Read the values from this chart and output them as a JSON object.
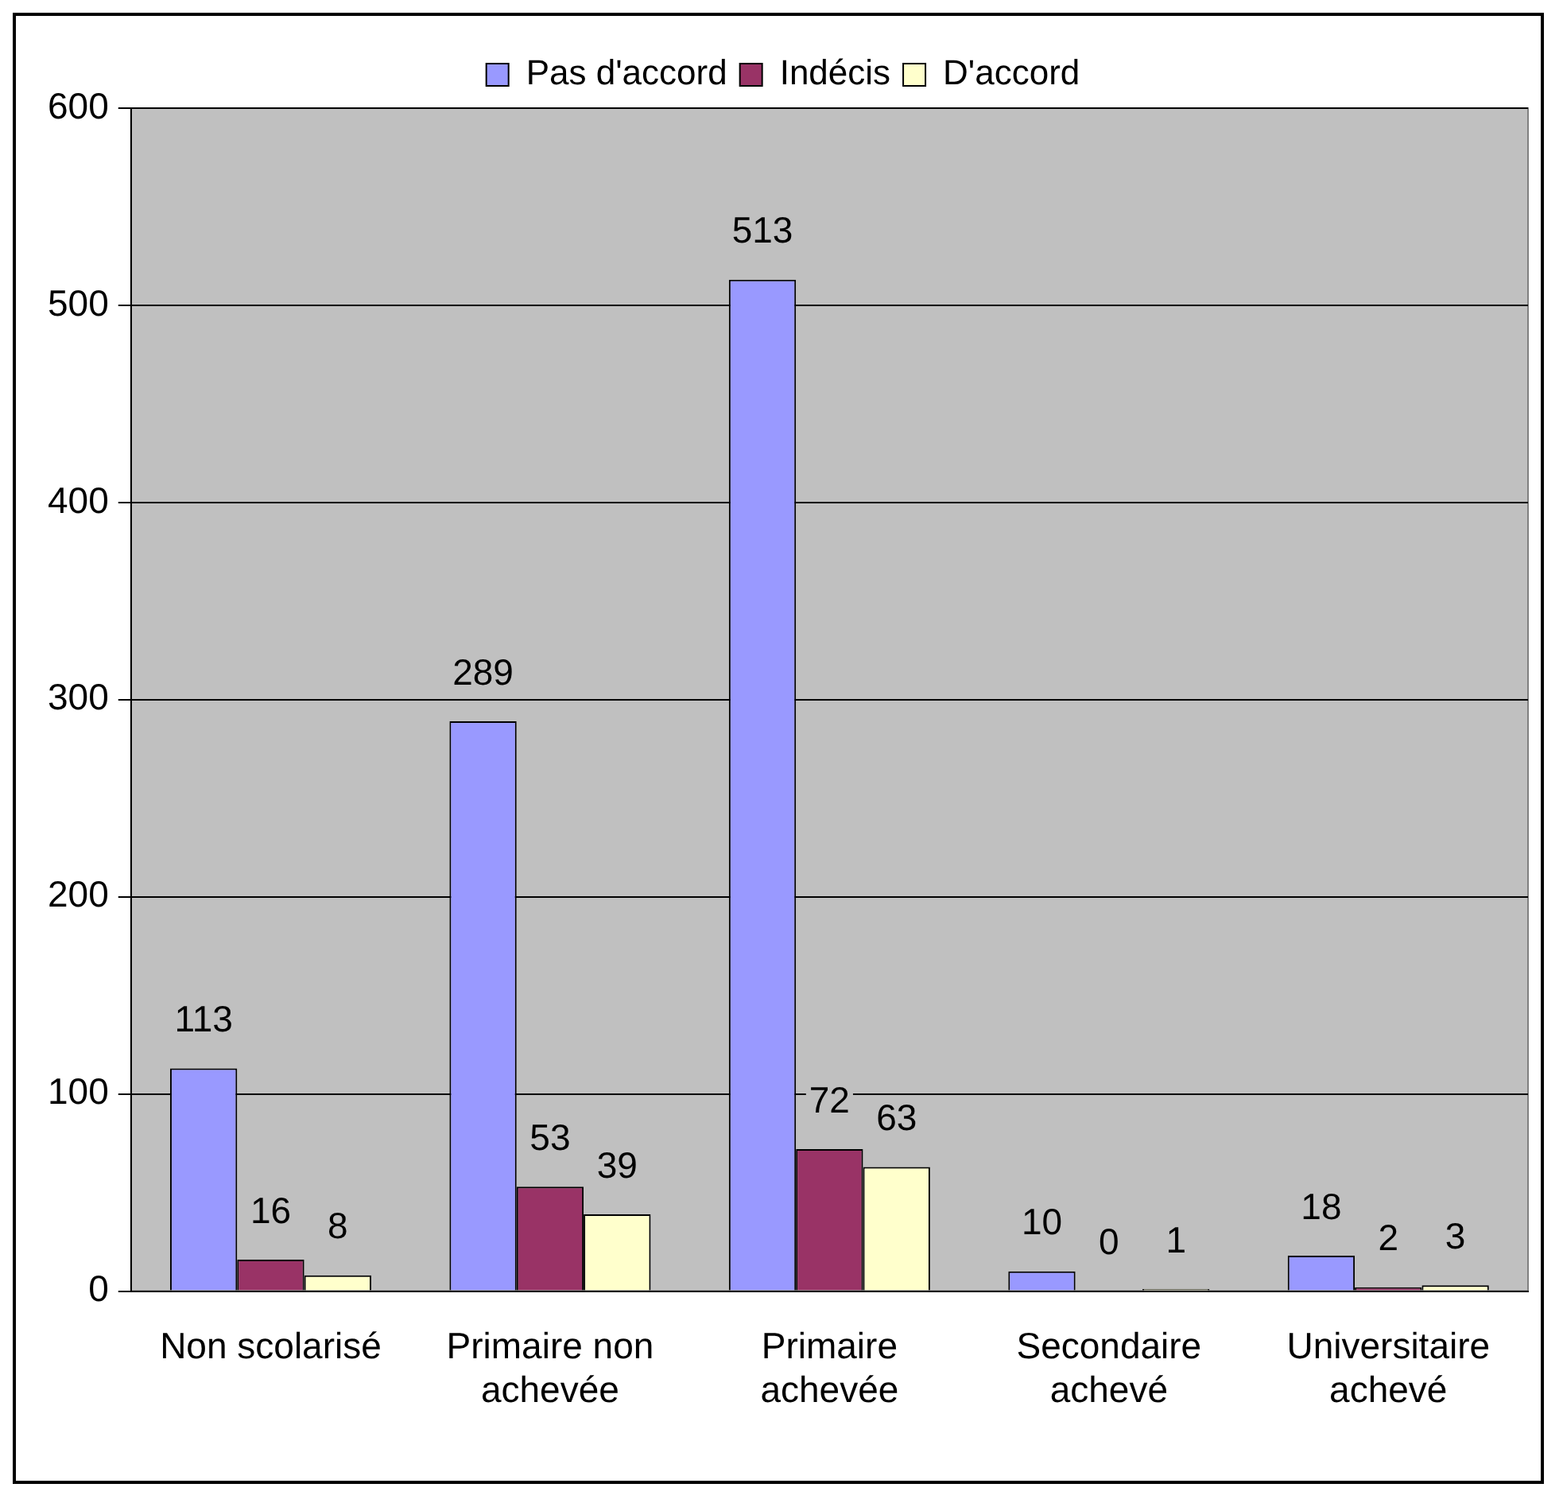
{
  "chart_data": {
    "type": "bar",
    "categories": [
      "Non scolarisé",
      "Primaire non achevée",
      "Primaire achevée",
      "Secondaire achevé",
      "Universitaire achevé"
    ],
    "series": [
      {
        "name": "Pas d'accord",
        "color": "#9999ff",
        "values": [
          113,
          289,
          513,
          10,
          18
        ]
      },
      {
        "name": "Indécis",
        "color": "#993366",
        "values": [
          16,
          53,
          72,
          0,
          2
        ]
      },
      {
        "name": "D'accord",
        "color": "#ffffcc",
        "values": [
          8,
          39,
          63,
          1,
          3
        ]
      }
    ],
    "ylim": [
      0,
      600
    ],
    "yticks": [
      0,
      100,
      200,
      300,
      400,
      500,
      600
    ],
    "grid": "y",
    "legend": "top",
    "data_labels": true
  }
}
